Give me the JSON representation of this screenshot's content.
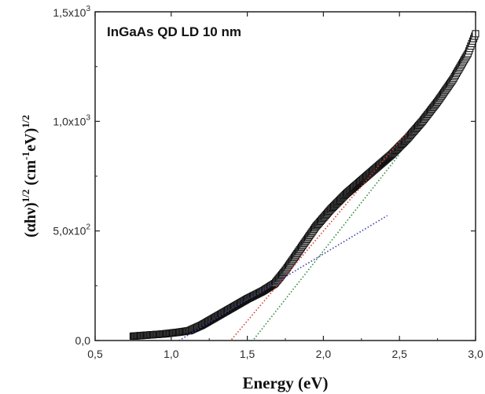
{
  "chart_data": {
    "type": "scatter",
    "title": "InGaAs QD LD 10 nm",
    "xlabel": "Energy (eV)",
    "ylabel": {
      "base": "(αhν)",
      "exp1": "1/2",
      "mid": " (cm",
      "exp2": "-1",
      "mid2": "eV)",
      "exp3": "1/2"
    },
    "xlim": [
      0.5,
      3.0
    ],
    "ylim": [
      0,
      1500
    ],
    "x_ticks": [
      "0,5",
      "1,0",
      "1,5",
      "2,0",
      "2,5",
      "3,0"
    ],
    "x_tick_values": [
      0.5,
      1.0,
      1.5,
      2.0,
      2.5,
      3.0
    ],
    "y_ticks": [
      {
        "value": 0,
        "mant": "0,0",
        "exp": ""
      },
      {
        "value": 500,
        "mant": "5,0x10",
        "exp": "2"
      },
      {
        "value": 1000,
        "mant": "1,0x10",
        "exp": "3"
      },
      {
        "value": 1500,
        "mant": "1,5x10",
        "exp": "3"
      }
    ],
    "grid": false,
    "series": [
      {
        "values": [
          [
            0.75,
            20
          ],
          [
            0.85,
            25
          ],
          [
            0.95,
            30
          ],
          [
            1.05,
            38
          ],
          [
            1.12,
            45
          ],
          [
            1.2,
            70
          ],
          [
            1.3,
            110
          ],
          [
            1.4,
            150
          ],
          [
            1.5,
            190
          ],
          [
            1.6,
            225
          ],
          [
            1.68,
            260
          ],
          [
            1.75,
            320
          ],
          [
            1.85,
            420
          ],
          [
            1.95,
            520
          ],
          [
            2.05,
            600
          ],
          [
            2.15,
            670
          ],
          [
            2.25,
            730
          ],
          [
            2.35,
            790
          ],
          [
            2.45,
            850
          ],
          [
            2.55,
            920
          ],
          [
            2.65,
            1000
          ],
          [
            2.75,
            1090
          ],
          [
            2.85,
            1190
          ],
          [
            2.95,
            1310
          ],
          [
            3.0,
            1400
          ]
        ],
        "color": "#111111",
        "marker": "open-square"
      }
    ],
    "fits": [
      {
        "x": [
          1.33,
          2.55
        ],
        "y": [
          -50,
          950
        ],
        "color": "#d83a2a"
      },
      {
        "x": [
          1.48,
          2.5
        ],
        "y": [
          -50,
          850
        ],
        "color": "#2d8a3a"
      },
      {
        "x": [
          0.98,
          2.42
        ],
        "y": [
          -30,
          570
        ],
        "color": "#3a3fa8"
      }
    ]
  }
}
